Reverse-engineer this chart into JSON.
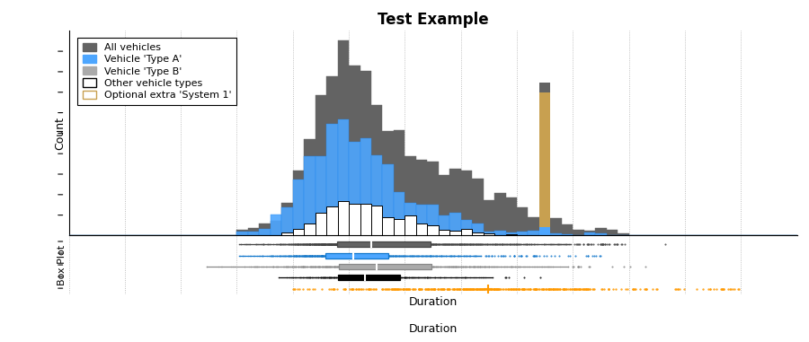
{
  "title": "Test Example",
  "xlabel": "Duration",
  "ylabel_hist": "Count",
  "ylabel_box": "Box Plot",
  "background_color": "#ffffff",
  "grid_color": "#999999",
  "hist_color_all": "#636363",
  "hist_color_typeA": "#4da6ff",
  "hist_color_typeA_light": "#80bfff",
  "hist_color_optional": "#c8a050",
  "box_color_all": "#636363",
  "box_color_typeA": "#4da6ff",
  "box_color_typeB": "#aaaaaa",
  "box_color_other": "#000000",
  "box_color_optional": "#ff9900",
  "legend_labels": [
    "All vehicles",
    "Vehicle 'Type A'",
    "Vehicle 'Type B'",
    "Other vehicle types",
    "Optional extra 'System 1'"
  ],
  "legend_facecolors": [
    "#636363",
    "#4da6ff",
    "#aaaaaa",
    "#ffffff",
    "#ffffff"
  ],
  "legend_edge_colors": [
    "#636363",
    "#4da6ff",
    "#aaaaaa",
    "#000000",
    "#c8a050"
  ],
  "seed": 42,
  "xmin": 0,
  "xmax": 130,
  "bins": 65
}
